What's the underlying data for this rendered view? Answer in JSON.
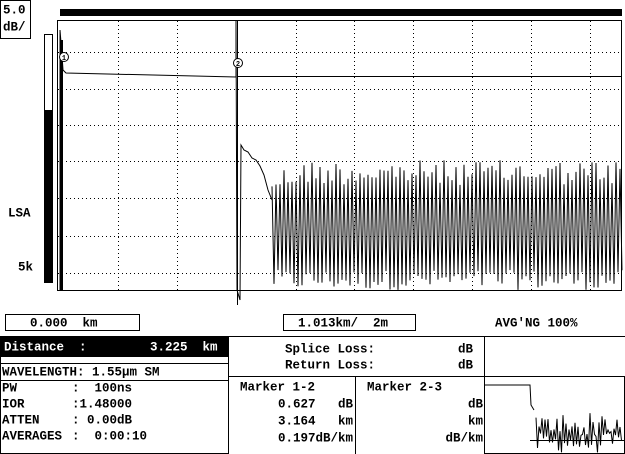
{
  "header": {
    "scale": "5.0",
    "unit": "dB/"
  },
  "side_labels": [
    "LSA",
    "5k"
  ],
  "markers": [
    "1",
    "2"
  ],
  "footer": {
    "start": "0.000  km",
    "span": "1.013km/  2m",
    "averaging": "AVG'NG 100%"
  },
  "info": {
    "distance_label": "Distance  :",
    "distance_value": "3.225  km",
    "wavelength": "WAVELENGTH: 1.55µm SM",
    "rows": [
      [
        "PW",
        ":  100ns"
      ],
      [
        "IOR",
        ":1.48000"
      ],
      [
        "ATTEN",
        ": 0.00dB"
      ],
      [
        "AVERAGES",
        ":  0:00:10"
      ]
    ]
  },
  "loss": {
    "splice_label": "Splice Loss:",
    "splice_unit": "dB",
    "return_label": "Return Loss:",
    "return_unit": "dB"
  },
  "marker_table": {
    "headers": [
      "Marker 1-2",
      "Marker 2-3"
    ],
    "marker_1_2": [
      "0.627   dB",
      "3.164   km",
      "0.197dB/km"
    ],
    "marker_2_3": [
      "dB",
      "km",
      "dB/km"
    ]
  }
}
